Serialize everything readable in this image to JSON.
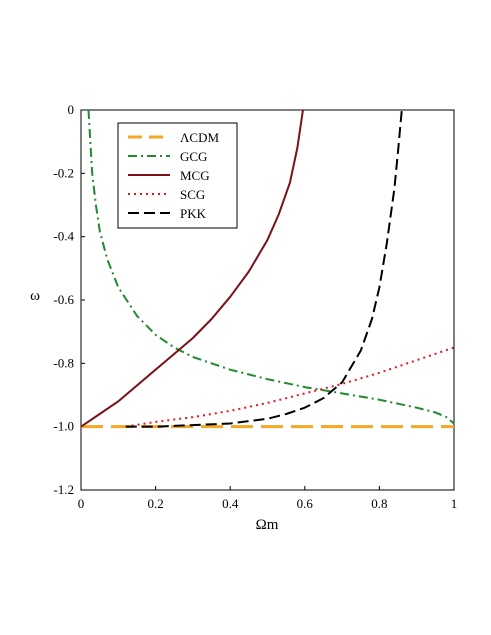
{
  "chart_data": {
    "type": "line",
    "title": "",
    "xlabel": "Ωm",
    "ylabel": "ω",
    "xlim": [
      0,
      1
    ],
    "ylim": [
      -1.2,
      0
    ],
    "grid": false,
    "legend_position": "top-left",
    "x_ticks": [
      "0",
      "0.2",
      "0.4",
      "0.6",
      "0.8",
      "1"
    ],
    "y_ticks": [
      "0",
      "-0.2",
      "-0.4",
      "-0.6",
      "-0.8",
      "-1.0",
      "-1.2"
    ],
    "series": [
      {
        "name": "ΛCDM",
        "color": "#f5a623",
        "dash": "long-dash",
        "x": [
          0,
          1
        ],
        "y": [
          -1.0,
          -1.0
        ]
      },
      {
        "name": "GCG",
        "color": "#1f8a2e",
        "dash": "dash-dot",
        "x": [
          0.02,
          0.025,
          0.03,
          0.04,
          0.05,
          0.07,
          0.1,
          0.15,
          0.2,
          0.25,
          0.3,
          0.4,
          0.5,
          0.6,
          0.7,
          0.8,
          0.9,
          0.95,
          0.98,
          1.0
        ],
        "y": [
          0.0,
          -0.1,
          -0.2,
          -0.3,
          -0.38,
          -0.47,
          -0.56,
          -0.65,
          -0.71,
          -0.75,
          -0.78,
          -0.82,
          -0.85,
          -0.875,
          -0.895,
          -0.915,
          -0.94,
          -0.955,
          -0.97,
          -0.99
        ]
      },
      {
        "name": "MCG",
        "color": "#7a1018",
        "dash": "solid",
        "x": [
          0.0,
          0.05,
          0.1,
          0.15,
          0.2,
          0.25,
          0.3,
          0.35,
          0.4,
          0.45,
          0.5,
          0.53,
          0.56,
          0.58,
          0.595
        ],
        "y": [
          -1.0,
          -0.96,
          -0.92,
          -0.87,
          -0.82,
          -0.77,
          -0.72,
          -0.66,
          -0.59,
          -0.51,
          -0.41,
          -0.33,
          -0.23,
          -0.12,
          0.0
        ]
      },
      {
        "name": "SCG",
        "color": "#e8141e",
        "dash": "dotted",
        "x": [
          0.12,
          0.2,
          0.3,
          0.4,
          0.5,
          0.6,
          0.7,
          0.8,
          0.9,
          1.0
        ],
        "y": [
          -1.0,
          -0.985,
          -0.97,
          -0.95,
          -0.925,
          -0.895,
          -0.865,
          -0.83,
          -0.79,
          -0.75
        ]
      },
      {
        "name": "PKK",
        "color": "#000000",
        "dash": "dashed",
        "x": [
          0.12,
          0.2,
          0.3,
          0.4,
          0.5,
          0.55,
          0.6,
          0.65,
          0.7,
          0.75,
          0.78,
          0.8,
          0.82,
          0.84,
          0.85,
          0.86
        ],
        "y": [
          -1.0,
          -1.0,
          -0.995,
          -0.99,
          -0.975,
          -0.96,
          -0.94,
          -0.91,
          -0.86,
          -0.76,
          -0.66,
          -0.56,
          -0.42,
          -0.25,
          -0.13,
          0.0
        ]
      }
    ]
  }
}
